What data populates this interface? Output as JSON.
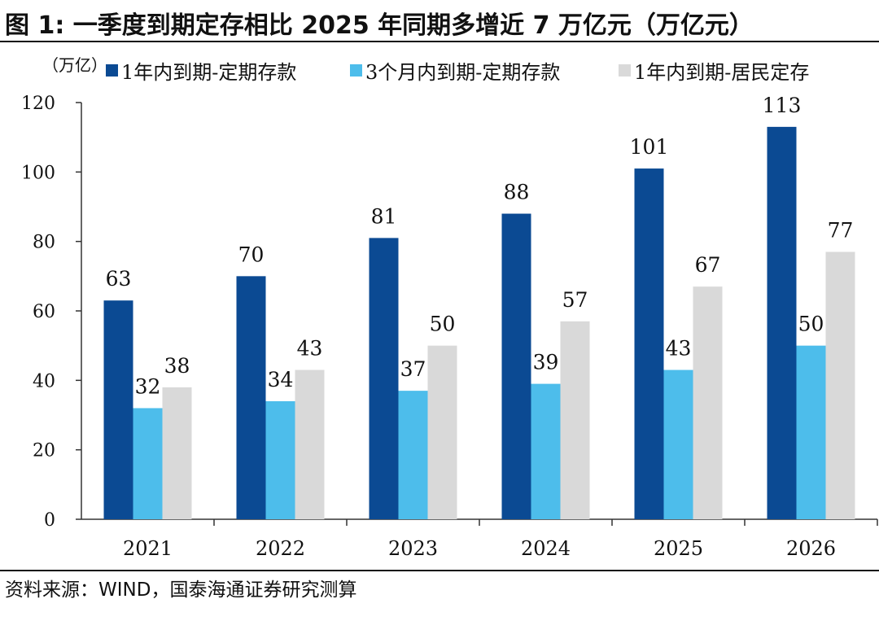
{
  "title": "图 1:  一季度到期定存相比 2025 年同期多增近 7 万亿元（万亿元）",
  "source": "资料来源：WIND，国泰海通证券研究测算",
  "chart_data": {
    "type": "bar",
    "unit_label": "（万亿）",
    "categories": [
      "2021",
      "2022",
      "2023",
      "2024",
      "2025",
      "2026"
    ],
    "series": [
      {
        "name": "1年内到期-定期存款",
        "color": "#0B4A93",
        "values": [
          63,
          70,
          81,
          88,
          101,
          113
        ]
      },
      {
        "name": "3个月内到期-定期存款",
        "color": "#4DBDEB",
        "values": [
          32,
          34,
          37,
          39,
          43,
          50
        ]
      },
      {
        "name": "1年内到期-居民定存",
        "color": "#D9D9D9",
        "values": [
          38,
          43,
          50,
          57,
          67,
          77
        ]
      }
    ],
    "ylim": [
      0,
      120
    ],
    "yticks": [
      0,
      20,
      40,
      60,
      80,
      100,
      120
    ],
    "legend_position": "top",
    "grid": false
  }
}
